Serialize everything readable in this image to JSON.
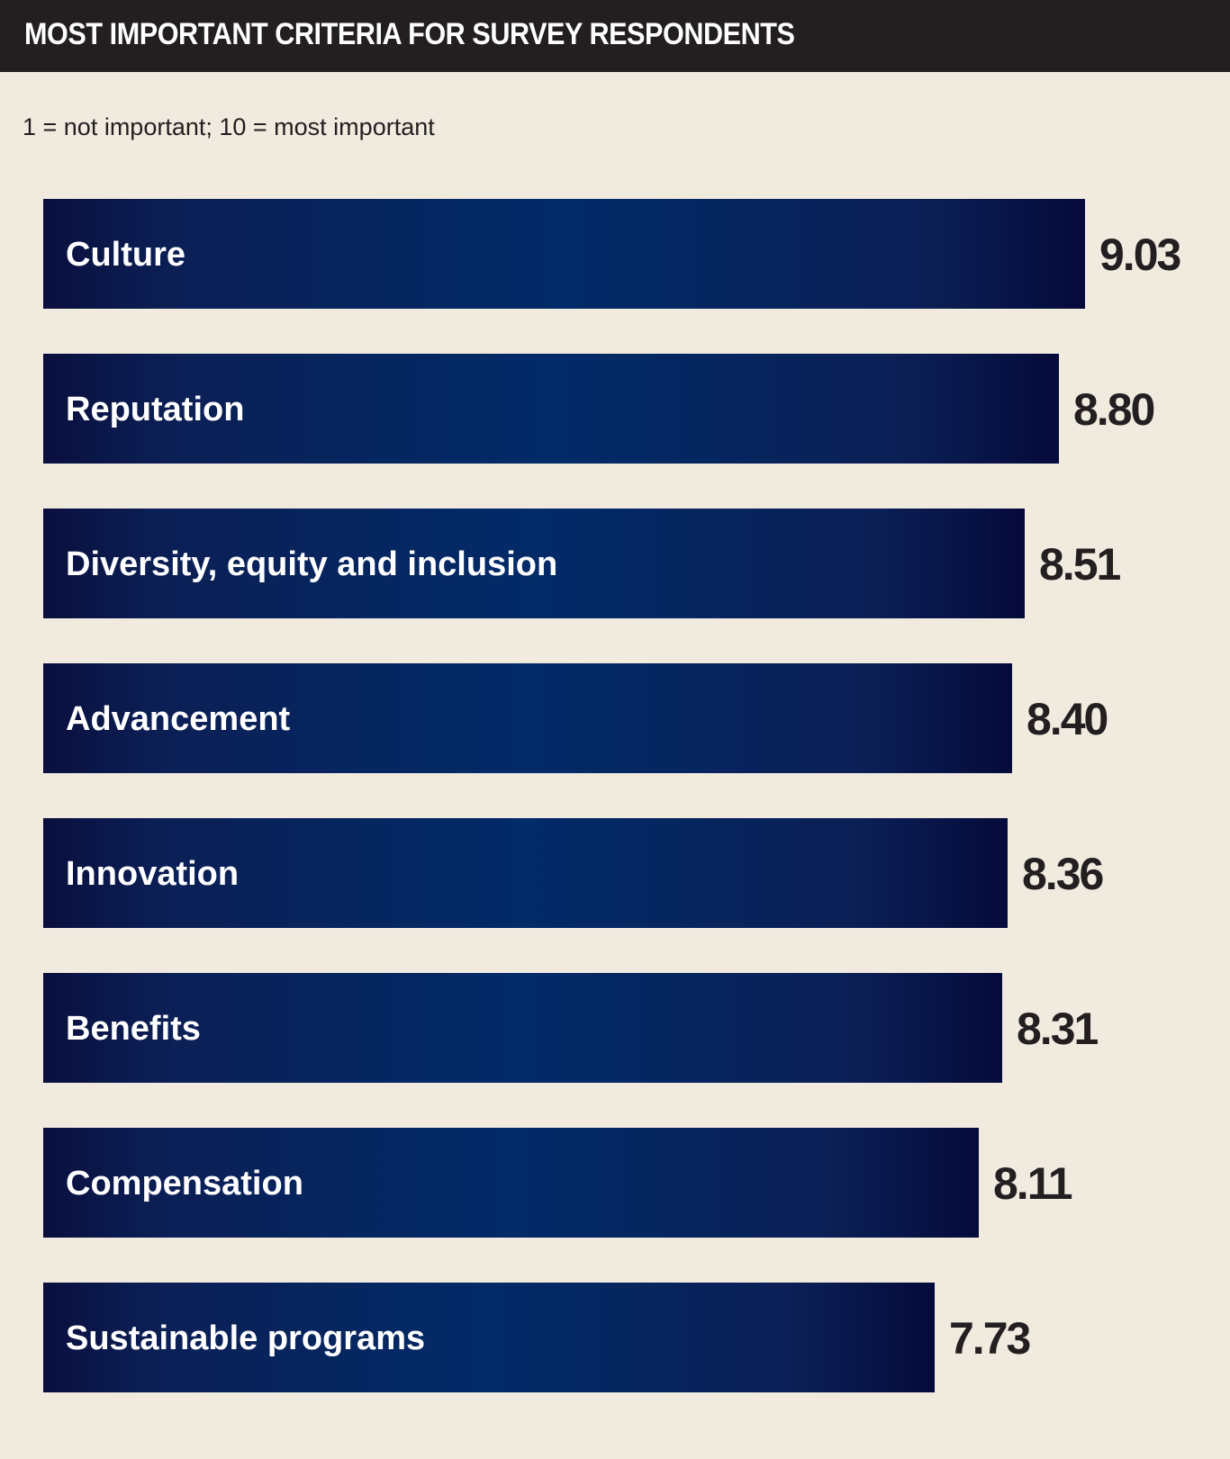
{
  "header": {
    "title": "MOST IMPORTANT CRITERIA FOR SURVEY RESPONDENTS",
    "subtitle": "1 = not important; 10 = most important"
  },
  "colors": {
    "background": "#f0eadf",
    "header": "#231f20",
    "bar_dark": "#0a0f3e",
    "bar_light": "#022b68",
    "text_dark": "#231f20"
  },
  "chart_data": {
    "type": "bar",
    "orientation": "horizontal",
    "title": "MOST IMPORTANT CRITERIA FOR SURVEY RESPONDENTS",
    "subtitle": "1 = not important; 10 = most important",
    "categories": [
      "Culture",
      "Reputation",
      "Diversity, equity and inclusion",
      "Advancement",
      "Innovation",
      "Benefits",
      "Compensation",
      "Sustainable programs"
    ],
    "values": [
      9.03,
      8.8,
      8.51,
      8.4,
      8.36,
      8.31,
      8.11,
      7.73
    ],
    "value_labels": [
      "9.03",
      "8.80",
      "8.51",
      "8.40",
      "8.36",
      "8.31",
      "8.11",
      "7.73"
    ],
    "xlim": [
      0,
      9.03
    ],
    "xlabel": "",
    "ylabel": "",
    "grid": false,
    "legend": "none"
  }
}
